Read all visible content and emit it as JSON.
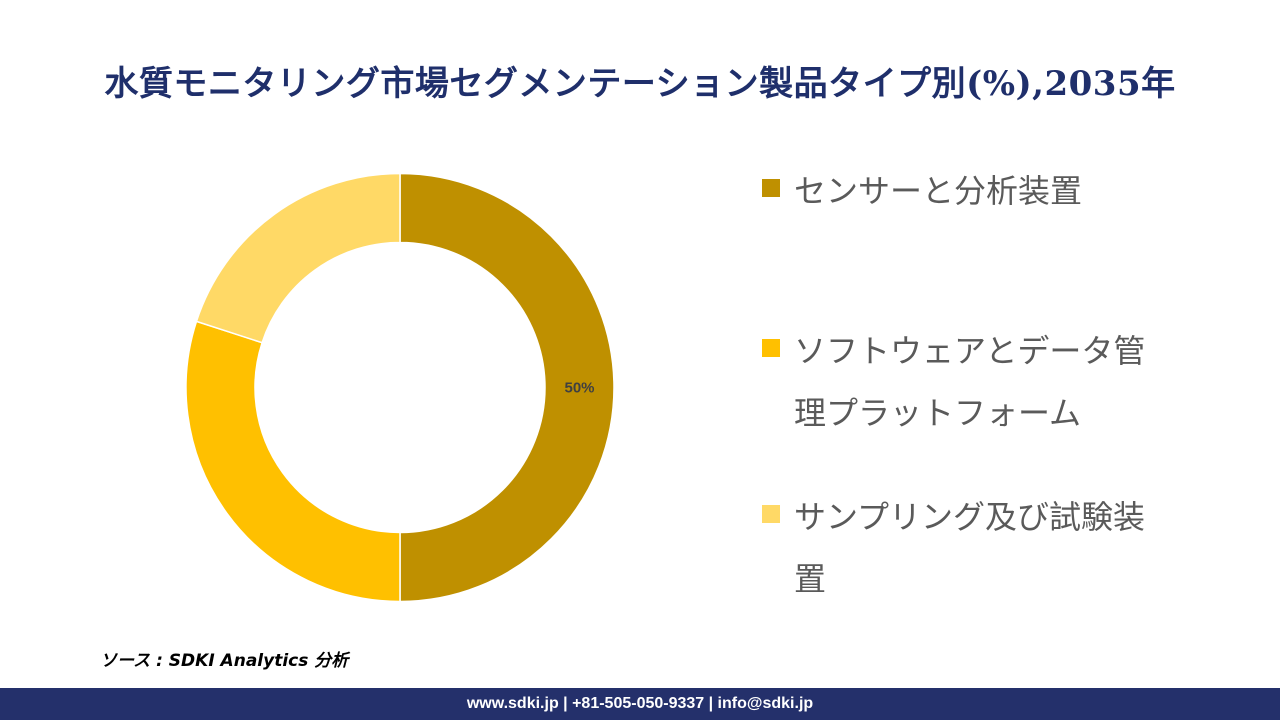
{
  "title": "水質モニタリング市場セグメンテーション製品タイプ別(%),2035年",
  "chart_data": {
    "type": "pie",
    "donut": true,
    "slices": [
      {
        "label": "センサーと分析装置",
        "value": 50,
        "color": "#bf9000"
      },
      {
        "label": "ソフトウェアとデータ管理プラットフォーム",
        "value": 30,
        "color": "#ffc000"
      },
      {
        "label": "サンプリング及び試験装置",
        "value": 20,
        "color": "#ffd966"
      }
    ],
    "data_labels": [
      "50%",
      "",
      ""
    ],
    "legend_position": "right"
  },
  "legend": {
    "items": [
      {
        "label": "センサーと分析装置",
        "color": "#bf9000"
      },
      {
        "label": "ソフトウェアとデータ管理プラットフォーム",
        "color": "#ffc000"
      },
      {
        "label": "サンプリング及び試験装置",
        "color": "#ffd966"
      }
    ]
  },
  "source": "ソース : SDKI Analytics 分析",
  "footer": "www.sdki.jp | +81-505-050-9337 | info@sdki.jp"
}
